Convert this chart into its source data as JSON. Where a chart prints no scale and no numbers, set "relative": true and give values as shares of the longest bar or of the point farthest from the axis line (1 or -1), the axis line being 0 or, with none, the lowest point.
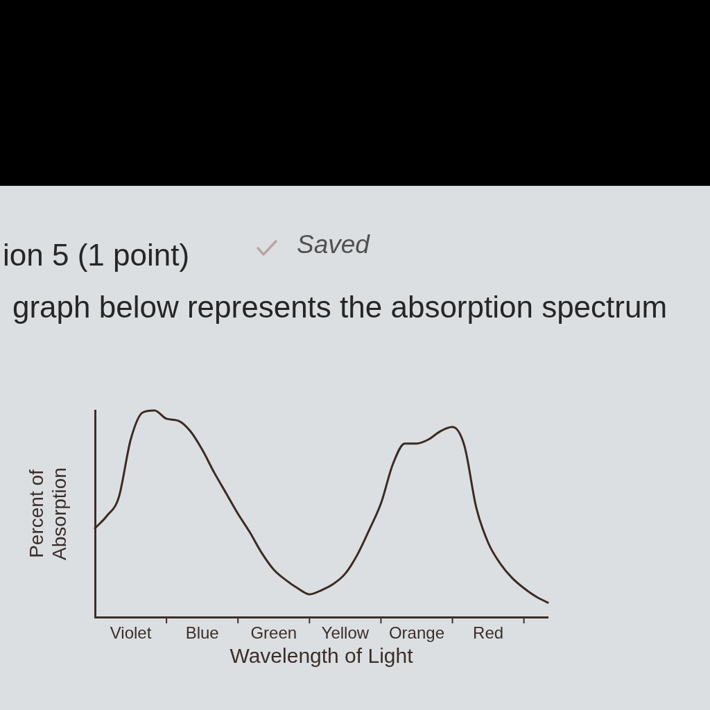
{
  "chart_data": {
    "type": "line",
    "title": "ion 5 (1 point)",
    "subtitle": "graph below represents the absorption spectrum",
    "annotations": [
      "Saved"
    ],
    "xlabel": "Wavelength of Light",
    "ylabel": "Percent of Absorption",
    "relative": true,
    "color": "#3b2b22",
    "marker": "none",
    "categories": [
      null,
      null,
      null,
      "Violet",
      null,
      null,
      null,
      null,
      null,
      "Blue",
      null,
      null,
      null,
      null,
      null,
      "Green",
      null,
      null,
      null,
      null,
      null,
      "Yellow",
      null,
      null,
      null,
      null,
      null,
      "Orange",
      null,
      null,
      null,
      null,
      null,
      "Red",
      null,
      null,
      null,
      null,
      null
    ],
    "values": [
      0.43,
      0.49,
      0.58,
      0.86,
      0.99,
      1,
      0.96,
      0.95,
      0.9,
      0.81,
      0.7,
      0.6,
      0.5,
      0.41,
      0.31,
      0.23,
      0.18,
      0.14,
      0.11,
      0.13,
      0.16,
      0.21,
      0.3,
      0.42,
      0.55,
      0.74,
      0.84,
      0.84,
      0.86,
      0.9,
      0.92,
      0.83,
      0.53,
      0.36,
      0.26,
      0.19,
      0.14,
      0.1,
      0.07
    ]
  }
}
